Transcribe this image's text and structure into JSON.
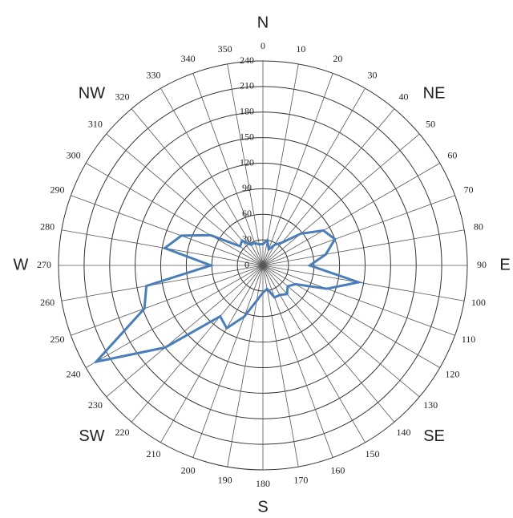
{
  "chart_data": {
    "type": "radar",
    "x": [
      0,
      10,
      20,
      30,
      40,
      50,
      60,
      70,
      80,
      90,
      100,
      110,
      120,
      130,
      140,
      150,
      160,
      170,
      180,
      190,
      200,
      210,
      220,
      230,
      240,
      250,
      260,
      270,
      280,
      290,
      300,
      310,
      320,
      330,
      340,
      350
    ],
    "series": [
      {
        "color": "#4a7ebb",
        "values": [
          25,
          30,
          20,
          28,
          35,
          58,
          82,
          90,
          75,
          55,
          114,
          80,
          44,
          38,
          44,
          40,
          40,
          28,
          32,
          42,
          64,
          85,
          78,
          150,
          226,
          148,
          139,
          61,
          117,
          102,
          71,
          35,
          38,
          28,
          28,
          25
        ]
      }
    ],
    "rlim": [
      0,
      240
    ],
    "rticks": [
      0,
      30,
      60,
      90,
      120,
      150,
      180,
      210,
      240
    ],
    "compass_labels": [
      "N",
      "NE",
      "E",
      "SE",
      "S",
      "SW",
      "W",
      "NW"
    ],
    "grid": true
  }
}
